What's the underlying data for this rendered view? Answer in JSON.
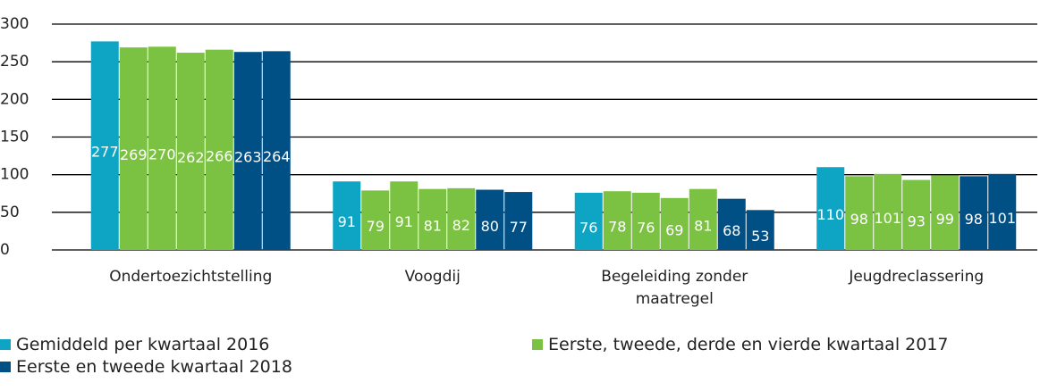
{
  "chart_data": {
    "type": "bar",
    "categories": [
      "Ondertoezichtstelling",
      "Voogdij",
      "Begeleiding zonder maatregel",
      "Jeugdreclassering"
    ],
    "series": [
      {
        "name": "Gemiddeld per kwartaal 2016",
        "color": "#0ea5c4",
        "values": [
          277,
          91,
          76,
          110
        ]
      },
      {
        "name": "Eerste, tweede, derde en vierde kwartaal 2017",
        "color": "#7cc242",
        "values": [
          [
            269,
            270,
            262,
            266
          ],
          [
            79,
            91,
            81,
            82
          ],
          [
            78,
            76,
            69,
            81
          ],
          [
            98,
            101,
            93,
            99
          ]
        ]
      },
      {
        "name": "Eerste en tweede kwartaal 2018",
        "color": "#004f85",
        "values": [
          [
            263,
            264
          ],
          [
            80,
            77
          ],
          [
            68,
            53
          ],
          [
            98,
            101
          ]
        ]
      }
    ],
    "ylim": [
      0,
      300
    ],
    "yticks": [
      0,
      50,
      100,
      150,
      200,
      250,
      300
    ],
    "grid": true
  }
}
